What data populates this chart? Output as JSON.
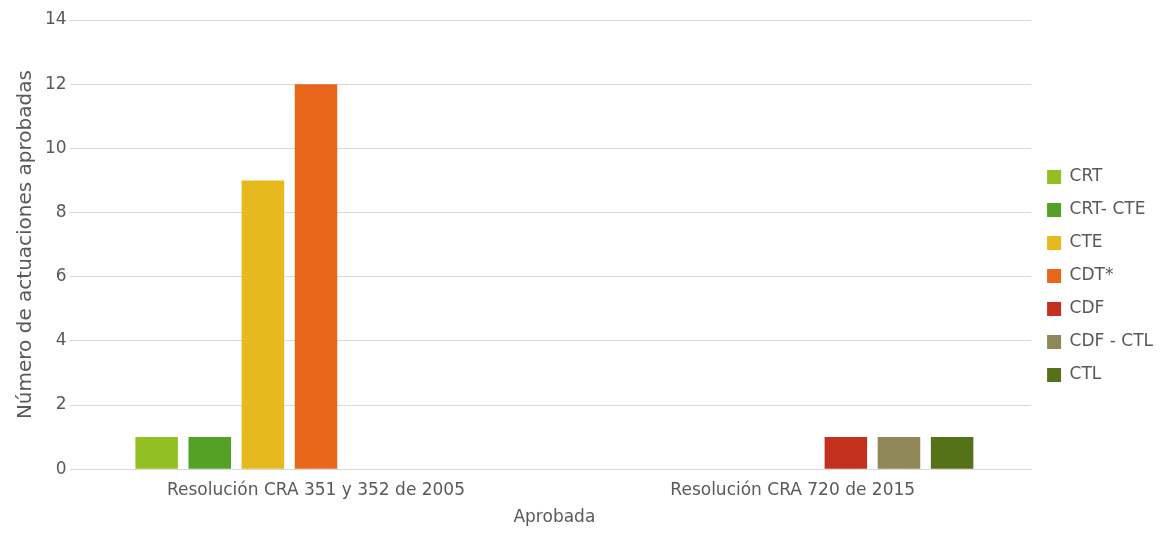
{
  "chart_data": {
    "type": "bar",
    "xlabel": "Aprobada",
    "ylabel": "Número de actuaciones aprobadas",
    "categories": [
      "Resolución CRA 351 y 352 de 2005",
      "Resolución CRA 720 de 2015"
    ],
    "series": [
      {
        "name": "CRT",
        "color": "#92c023",
        "values": [
          1,
          0
        ]
      },
      {
        "name": "CRT- CTE",
        "color": "#53a125",
        "values": [
          1,
          0
        ]
      },
      {
        "name": "CTE",
        "color": "#e6b91e",
        "values": [
          9,
          0
        ]
      },
      {
        "name": "CDT*",
        "color": "#e8661a",
        "values": [
          12,
          0
        ]
      },
      {
        "name": "CDF",
        "color": "#c3301d",
        "values": [
          0,
          1
        ]
      },
      {
        "name": "CDF - CTL",
        "color": "#8f8757",
        "values": [
          0,
          1
        ]
      },
      {
        "name": "CTL",
        "color": "#557219",
        "values": [
          0,
          1
        ]
      }
    ],
    "ylim": [
      0,
      14
    ],
    "yticks": [
      0,
      2,
      4,
      6,
      8,
      10,
      12,
      14
    ],
    "grid": "y",
    "legend": "right"
  }
}
